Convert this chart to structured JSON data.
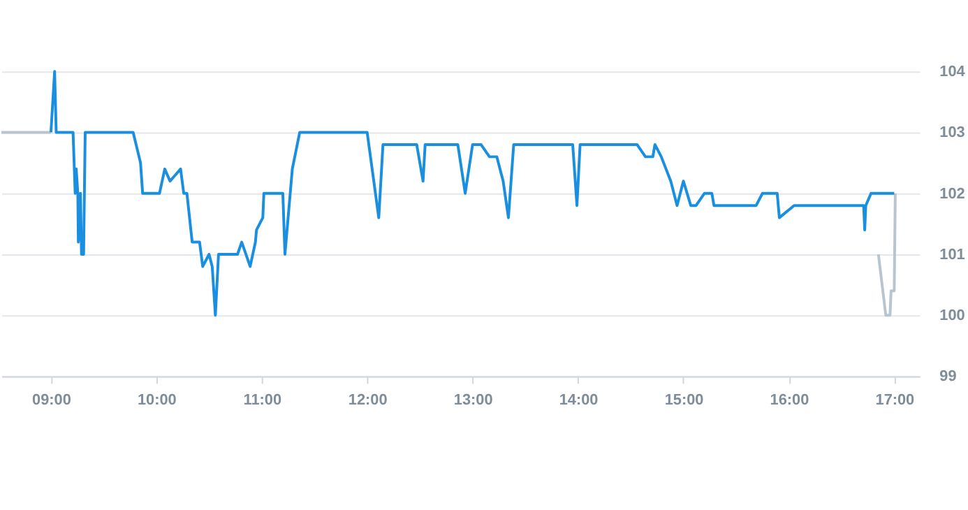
{
  "chart_data": {
    "type": "line",
    "xlim": [
      8.53,
      17.24
    ],
    "xticks": [
      {
        "value": 9,
        "label": "09:00"
      },
      {
        "value": 10,
        "label": "10:00"
      },
      {
        "value": 11,
        "label": "11:00"
      },
      {
        "value": 12,
        "label": "12:00"
      },
      {
        "value": 13,
        "label": "13:00"
      },
      {
        "value": 14,
        "label": "14:00"
      },
      {
        "value": 15,
        "label": "15:00"
      },
      {
        "value": 16,
        "label": "16:00"
      },
      {
        "value": 17,
        "label": "17:00"
      }
    ],
    "ylim": [
      99,
      104
    ],
    "yticks": [
      99,
      100,
      101,
      102,
      103,
      104
    ],
    "grid": "y",
    "marker": "none",
    "line_style": "solid",
    "series": [
      {
        "color": "#b9c5ce",
        "x": [
          8.53,
          9.0,
          null,
          16.85,
          16.92,
          16.96,
          16.97,
          17.0,
          17.01
        ],
        "values": [
          103,
          103,
          null,
          101,
          100,
          100,
          100.4,
          100.4,
          102
        ]
      },
      {
        "color": "#1a8fe0",
        "x": [
          9.0,
          9.035,
          9.05,
          9.21,
          9.23,
          9.24,
          9.255,
          9.26,
          9.28,
          9.29,
          9.31,
          9.325,
          9.78,
          9.85,
          9.87,
          10.03,
          10.08,
          10.13,
          10.23,
          10.26,
          10.29,
          10.34,
          10.41,
          10.44,
          10.5,
          10.53,
          10.56,
          10.59,
          10.77,
          10.81,
          10.89,
          10.94,
          10.95,
          11.01,
          11.02,
          11.2,
          11.22,
          11.29,
          11.36,
          12.0,
          12.11,
          12.15,
          12.47,
          12.53,
          12.55,
          12.86,
          12.93,
          13.0,
          13.08,
          13.16,
          13.23,
          13.29,
          13.34,
          13.39,
          13.95,
          13.99,
          14.02,
          14.56,
          14.64,
          14.71,
          14.73,
          14.79,
          14.88,
          14.94,
          15.0,
          15.07,
          15.12,
          15.2,
          15.27,
          15.29,
          15.69,
          15.75,
          15.89,
          15.91,
          16.05,
          16.71,
          16.72,
          16.73,
          16.78,
          17.0
        ],
        "values": [
          103,
          104,
          103,
          103,
          102,
          102.4,
          102,
          101.2,
          102,
          101,
          101,
          103,
          103,
          102.5,
          102,
          102,
          102.4,
          102.2,
          102.4,
          102,
          102,
          101.2,
          101.2,
          100.8,
          101,
          100.8,
          100,
          101,
          101,
          101.2,
          100.8,
          101.2,
          101.4,
          101.6,
          102,
          102,
          101,
          102.4,
          103,
          103,
          101.6,
          102.8,
          102.8,
          102.2,
          102.8,
          102.8,
          102,
          102.8,
          102.8,
          102.6,
          102.6,
          102.2,
          101.6,
          102.8,
          102.8,
          101.8,
          102.8,
          102.8,
          102.6,
          102.6,
          102.8,
          102.6,
          102.2,
          101.8,
          102.2,
          101.8,
          101.8,
          102,
          102,
          101.8,
          101.8,
          102,
          102,
          101.6,
          101.8,
          101.8,
          101.4,
          101.8,
          102,
          102
        ]
      }
    ]
  }
}
